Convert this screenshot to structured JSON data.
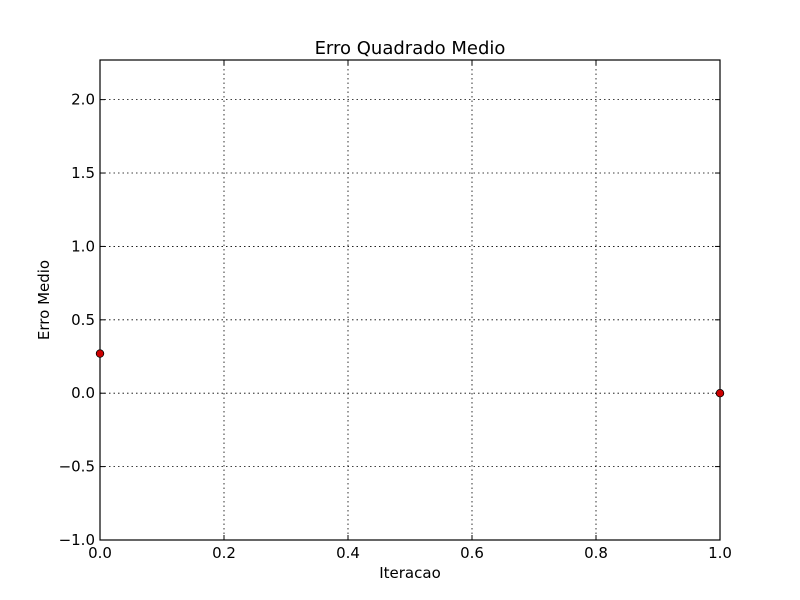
{
  "chart_data": {
    "type": "scatter",
    "title": "Erro Quadrado Medio",
    "xlabel": "Iteracao",
    "ylabel": "Erro Medio",
    "xlim": [
      0.0,
      1.0
    ],
    "ylim": [
      -1.0,
      2.27
    ],
    "xticks": [
      0.0,
      0.2,
      0.4,
      0.6,
      0.8,
      1.0
    ],
    "xtick_labels": [
      "0.0",
      "0.2",
      "0.4",
      "0.6",
      "0.8",
      "1.0"
    ],
    "yticks": [
      -1.0,
      -0.5,
      0.0,
      0.5,
      1.0,
      1.5,
      2.0
    ],
    "ytick_labels": [
      "−1.0",
      "−0.5",
      "0.0",
      "0.5",
      "1.0",
      "1.5",
      "2.0"
    ],
    "grid": true,
    "series": [
      {
        "x": [
          0.0,
          1.0
        ],
        "y": [
          0.27,
          0.0
        ],
        "marker": "circle",
        "color": "#cc0000"
      }
    ]
  }
}
